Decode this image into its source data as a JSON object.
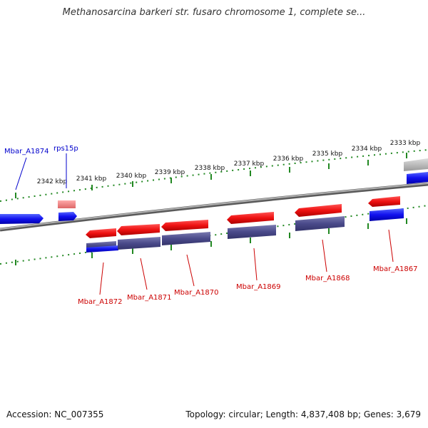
{
  "title": "Methanosarcina barkeri str. fusaro chromosome 1, complete se...",
  "accession": "Accession: NC_007355",
  "topology": "Topology: circular; Length: 4,837,408 bp; Genes: 3,679",
  "ticks": [
    {
      "label": "2333 kbp"
    },
    {
      "label": "2334 kbp"
    },
    {
      "label": "2335 kbp"
    },
    {
      "label": "2336 kbp"
    },
    {
      "label": "2337 kbp"
    },
    {
      "label": "2338 kbp"
    },
    {
      "label": "2339 kbp"
    },
    {
      "label": "2340 kbp"
    },
    {
      "label": "2341 kbp"
    },
    {
      "label": "2342 kbp"
    }
  ],
  "genes_forward": [
    {
      "label": "Mbar_A1874",
      "color": "#0000cc"
    },
    {
      "label": "rps15p",
      "color": "#0000cc"
    }
  ],
  "genes_reverse": [
    {
      "label": "Mbar_A1867",
      "color": "#cc0000"
    },
    {
      "label": "Mbar_A1868",
      "color": "#cc0000"
    },
    {
      "label": "Mbar_A1869",
      "color": "#cc0000"
    },
    {
      "label": "Mbar_A1870",
      "color": "#cc0000"
    },
    {
      "label": "Mbar_A1871",
      "color": "#cc0000"
    },
    {
      "label": "Mbar_A1872",
      "color": "#cc0000"
    }
  ],
  "colors": {
    "backbone": "#8a8a8a",
    "tick": "#228822",
    "cds_red": "#ee1111",
    "cds_blue": "#1111ee",
    "rna_purple": "#4a4a8a"
  }
}
